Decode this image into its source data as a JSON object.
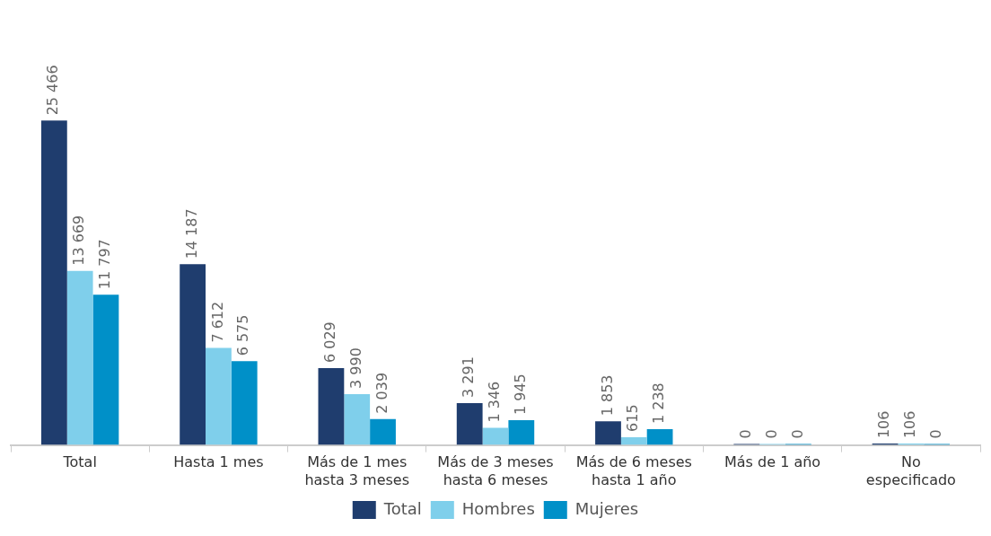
{
  "chart_data": {
    "type": "bar",
    "categories": [
      "Total",
      "Hasta 1 mes",
      "Más de 1 mes hasta 3 meses",
      "Más de 3 meses hasta 6 meses",
      "Más de 6 meses hasta 1 año",
      "Más de 1 año",
      "No especificado"
    ],
    "series": [
      {
        "name": "Total",
        "color": "#1f3d6e",
        "values": [
          25466,
          14187,
          6029,
          3291,
          1853,
          0,
          106
        ],
        "value_labels": [
          "25 466",
          "14 187",
          "6 029",
          "3 291",
          "1 853",
          "0",
          "106"
        ]
      },
      {
        "name": "Hombres",
        "color": "#7fcfeb",
        "values": [
          13669,
          7612,
          3990,
          1346,
          615,
          0,
          106
        ],
        "value_labels": [
          "13 669",
          "7 612",
          "3 990",
          "1 346",
          "615",
          "0",
          "106"
        ]
      },
      {
        "name": "Mujeres",
        "color": "#0090c8",
        "values": [
          11797,
          6575,
          2039,
          1945,
          1238,
          0,
          0
        ],
        "value_labels": [
          "11 797",
          "6 575",
          "2 039",
          "1 945",
          "1 238",
          "0",
          "0"
        ]
      }
    ],
    "legend": "bottom",
    "grid": false
  }
}
